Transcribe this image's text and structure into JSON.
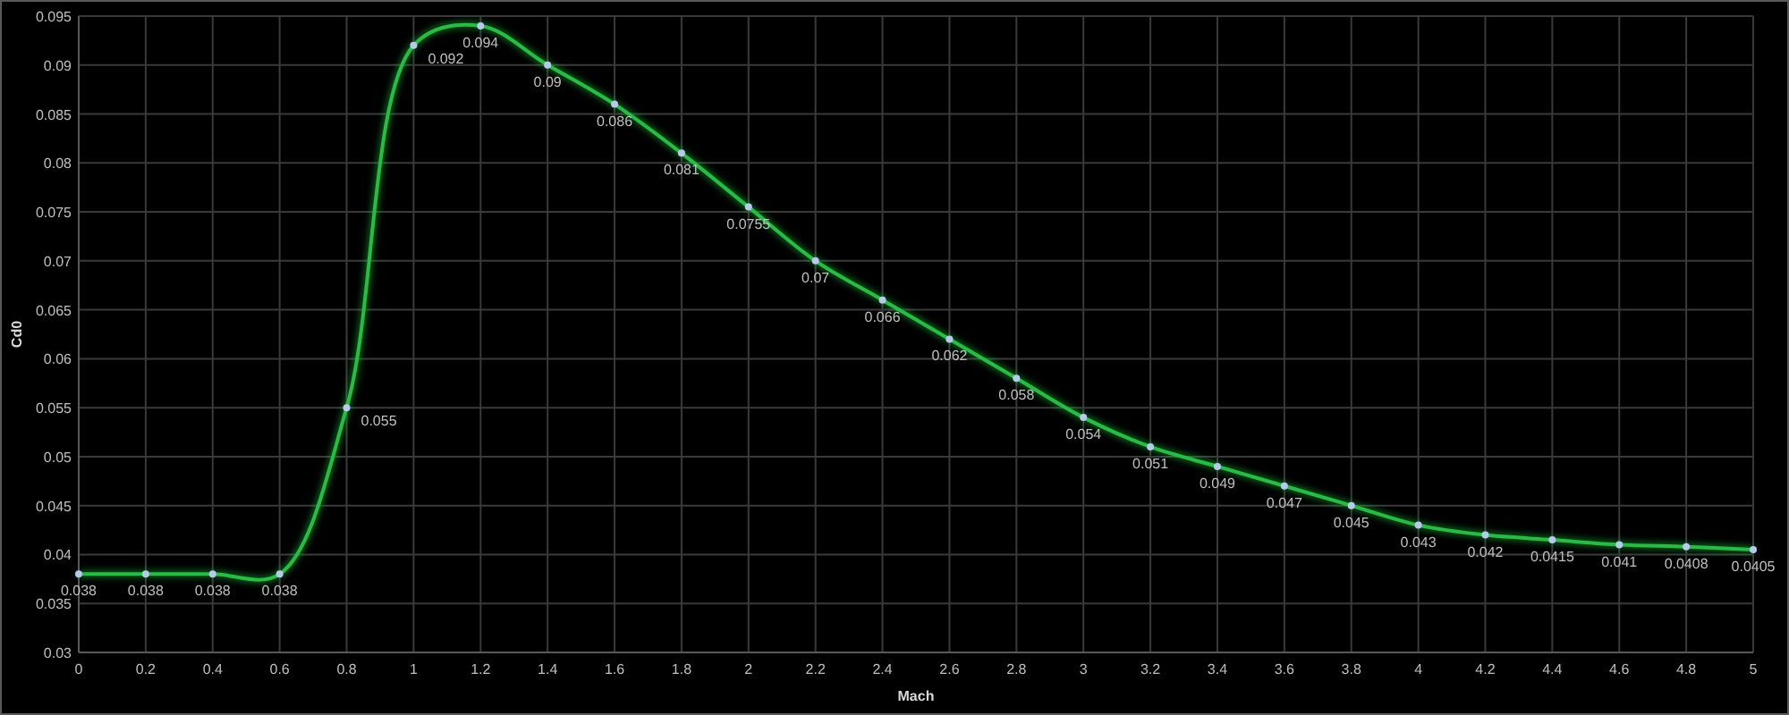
{
  "chart_data": {
    "type": "line",
    "xlabel": "Mach",
    "ylabel": "Cd0",
    "x": [
      0,
      0.2,
      0.4,
      0.6,
      0.8,
      1,
      1.2,
      1.4,
      1.6,
      1.8,
      2,
      2.2,
      2.4,
      2.6,
      2.8,
      3,
      3.2,
      3.4,
      3.6,
      3.8,
      4,
      4.2,
      4.4,
      4.6,
      4.8,
      5
    ],
    "series": [
      {
        "color": "#22c040",
        "values": [
          0.038,
          0.038,
          0.038,
          0.038,
          0.055,
          0.092,
          0.094,
          0.09,
          0.086,
          0.081,
          0.0755,
          0.07,
          0.066,
          0.062,
          0.058,
          0.054,
          0.051,
          0.049,
          0.047,
          0.045,
          0.043,
          0.042,
          0.0415,
          0.041,
          0.0408,
          0.0405
        ]
      }
    ],
    "xlim": [
      0,
      5
    ],
    "ylim": [
      0.03,
      0.095
    ],
    "xticks": [
      0,
      0.2,
      0.4,
      0.6,
      0.8,
      1,
      1.2,
      1.4,
      1.6,
      1.8,
      2,
      2.2,
      2.4,
      2.6,
      2.8,
      3,
      3.2,
      3.4,
      3.6,
      3.8,
      4,
      4.2,
      4.4,
      4.6,
      4.8,
      5
    ],
    "yticks": [
      0.03,
      0.035,
      0.04,
      0.045,
      0.05,
      0.055,
      0.06,
      0.065,
      0.07,
      0.075,
      0.08,
      0.085,
      0.09,
      0.095
    ],
    "grid": true,
    "marker": "circle",
    "line_style": "solid",
    "data_labels": true
  }
}
